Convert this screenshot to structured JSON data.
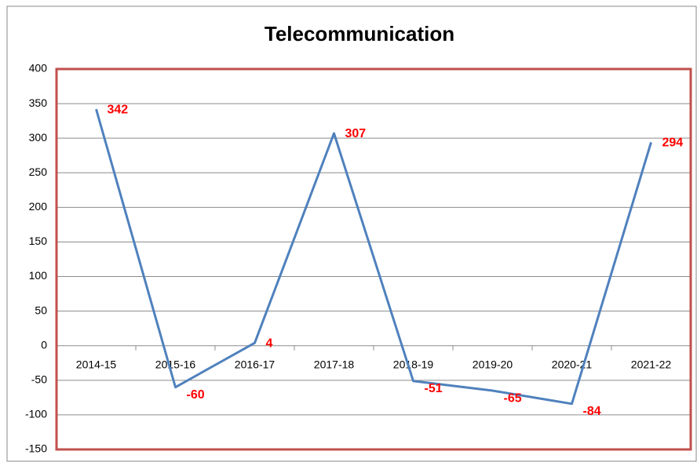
{
  "chart_data": {
    "type": "line",
    "title": "Telecommunication",
    "categories": [
      "2014-15",
      "2015-16",
      "2016-17",
      "2017-18",
      "2018-19",
      "2019-20",
      "2020-21",
      "2021-22"
    ],
    "series": [
      {
        "name": "Telecommunication",
        "color": "#4f81bd",
        "values": [
          342,
          -60,
          4,
          307,
          -51,
          -65,
          -84,
          294
        ]
      }
    ],
    "ylim": [
      -150,
      400
    ],
    "yticks": [
      -150,
      -100,
      -50,
      0,
      50,
      100,
      150,
      200,
      250,
      300,
      350,
      400
    ],
    "grid": true
  }
}
